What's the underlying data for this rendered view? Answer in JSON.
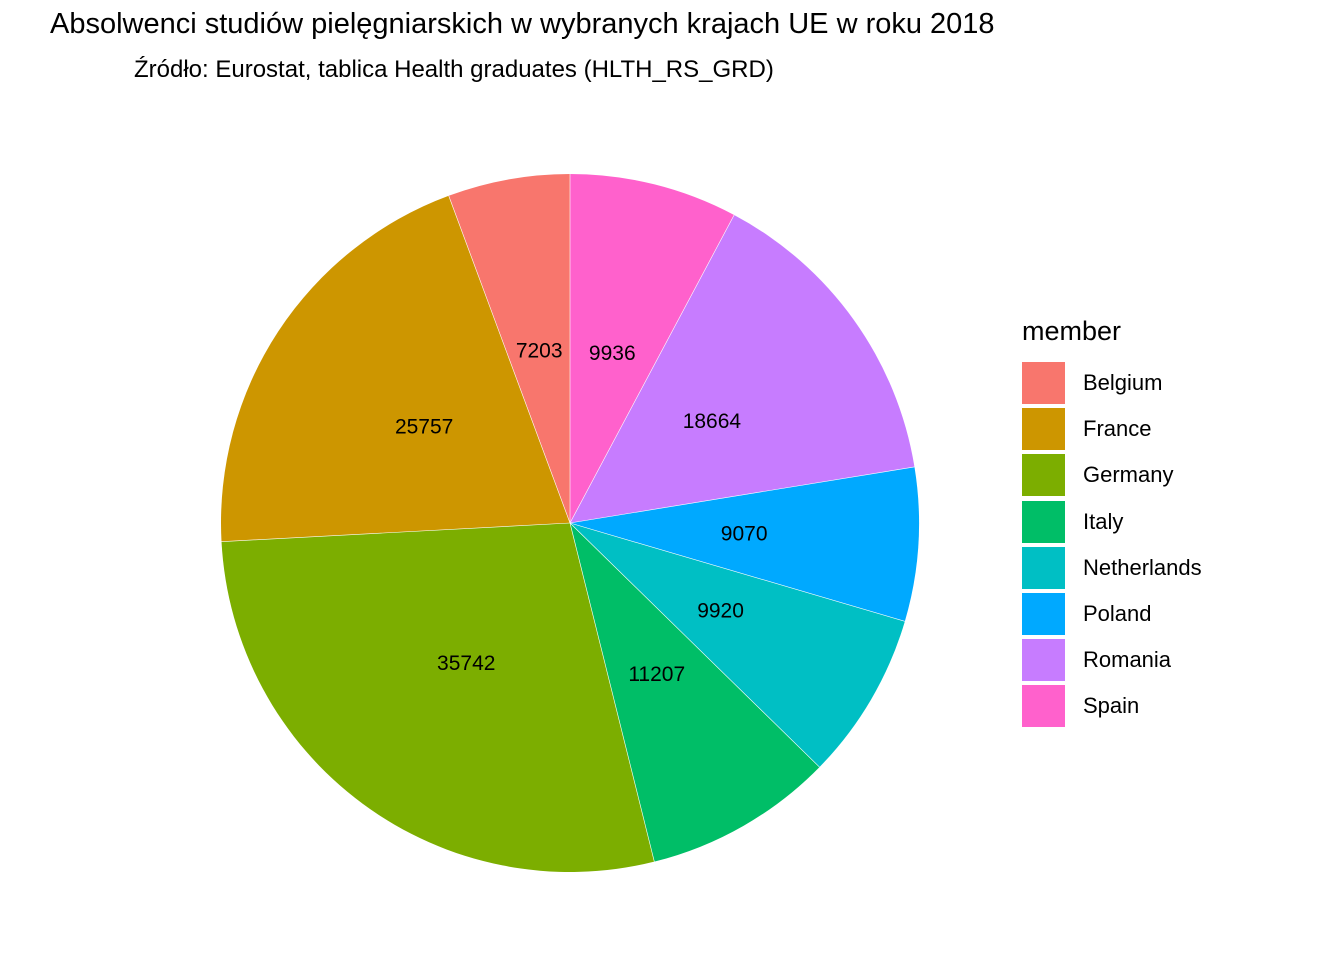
{
  "chart_data": {
    "type": "pie",
    "title": "Absolwenci studiów pielęgniarskich w wybranych krajach UE w roku 2018",
    "subtitle": "Źródło: Eurostat, tablica Health graduates (HLTH_RS_GRD)",
    "legend_title": "member",
    "legend_position": "right",
    "direction": "counterclockwise from top",
    "categories": [
      "Belgium",
      "France",
      "Germany",
      "Italy",
      "Netherlands",
      "Poland",
      "Romania",
      "Spain"
    ],
    "values": [
      7203,
      25757,
      35742,
      11207,
      9920,
      9070,
      18664,
      9936
    ],
    "colors": [
      "#F8766D",
      "#CD9600",
      "#7CAE00",
      "#00BE67",
      "#00BFC4",
      "#00A9FF",
      "#C77CFF",
      "#FF61CC"
    ]
  }
}
